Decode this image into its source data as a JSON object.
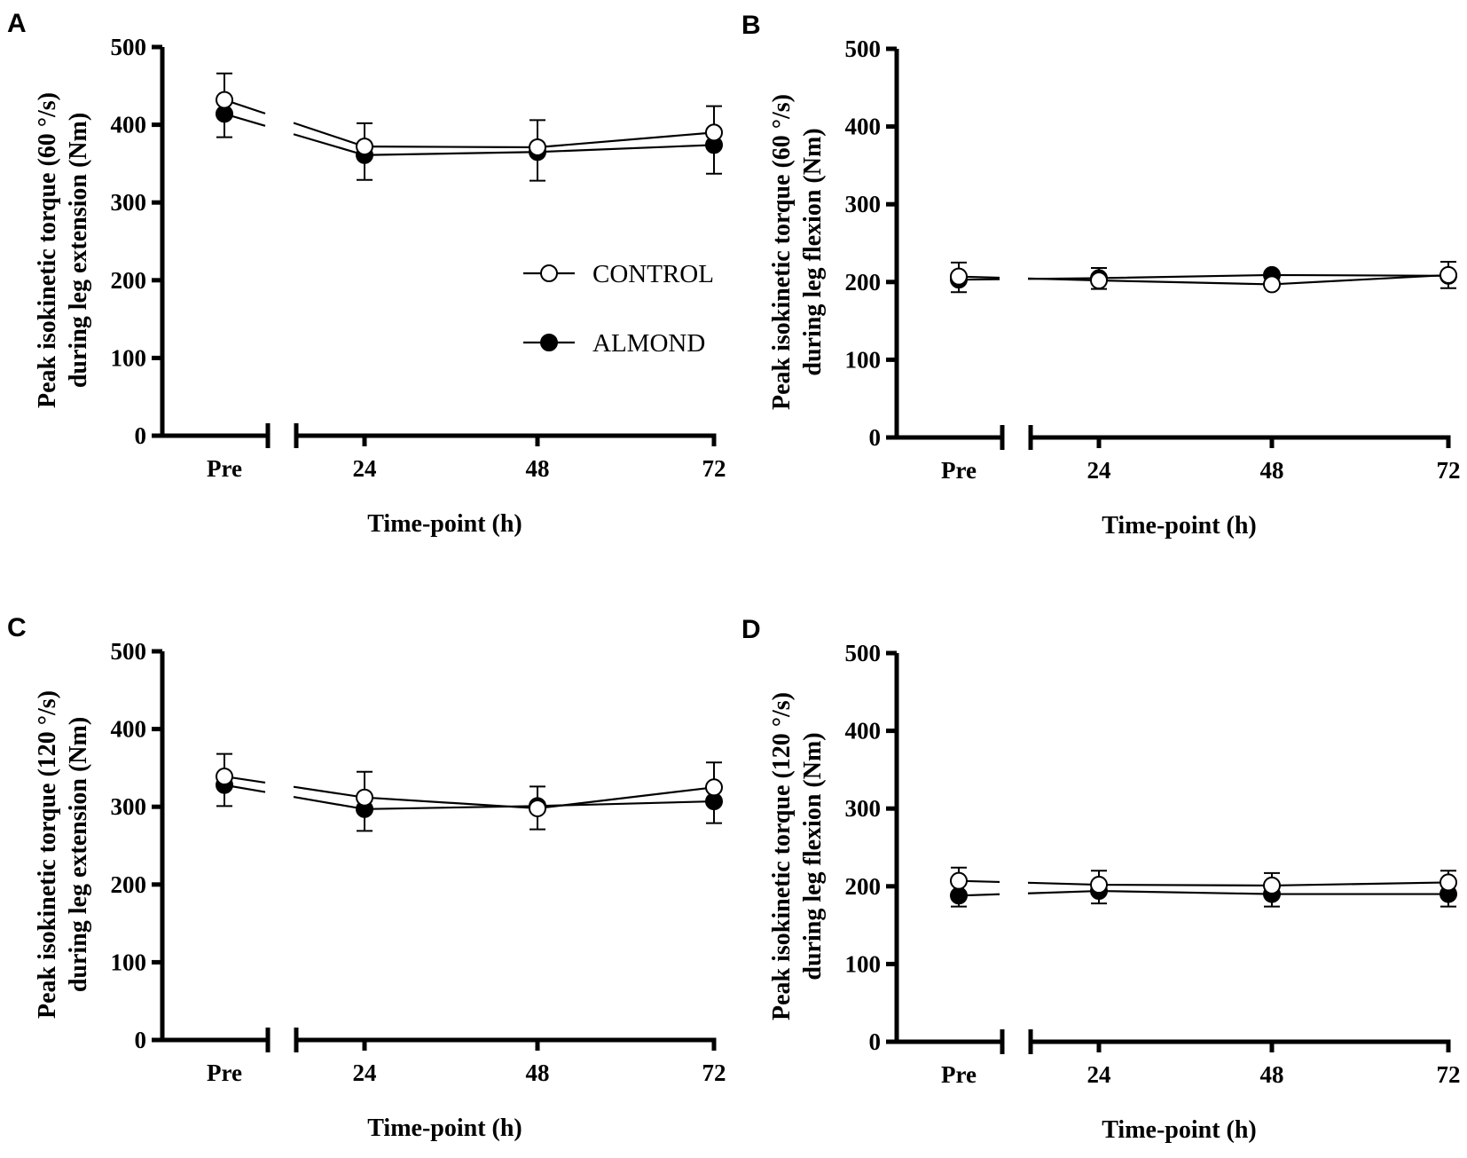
{
  "chart_data": [
    {
      "panel": "A",
      "type": "line",
      "ylabel_line1": "Peak isokinetic torque (60 °/s)",
      "ylabel_line2": "during leg extension (Nm)",
      "xlabel": "Time-point (h)",
      "categories": [
        "Pre",
        "24",
        "48",
        "72"
      ],
      "ylim": [
        0,
        500
      ],
      "yticks": [
        0,
        100,
        200,
        300,
        400,
        500
      ],
      "legend": true,
      "series": [
        {
          "name": "CONTROL",
          "marker": "open",
          "values": [
            432,
            372,
            371,
            390
          ],
          "err": [
            34,
            30,
            35,
            34
          ]
        },
        {
          "name": "ALMOND",
          "marker": "filled",
          "values": [
            414,
            361,
            365,
            374
          ],
          "err": [
            30,
            32,
            37,
            37
          ]
        }
      ]
    },
    {
      "panel": "B",
      "type": "line",
      "ylabel_line1": "Peak isokinetic torque (60 °/s)",
      "ylabel_line2": "during leg flexion (Nm)",
      "xlabel": "Time-point (h)",
      "categories": [
        "Pre",
        "24",
        "48",
        "72"
      ],
      "ylim": [
        0,
        500
      ],
      "yticks": [
        0,
        100,
        200,
        300,
        400,
        500
      ],
      "legend": false,
      "series": [
        {
          "name": "CONTROL",
          "marker": "open",
          "values": [
            207,
            202,
            197,
            209
          ],
          "err": [
            18,
            16,
            8,
            17
          ]
        },
        {
          "name": "ALMOND",
          "marker": "filled",
          "values": [
            203,
            205,
            209,
            208
          ],
          "err": [
            16,
            14,
            8,
            16
          ]
        }
      ]
    },
    {
      "panel": "C",
      "type": "line",
      "ylabel_line1": "Peak isokinetic torque (120 °/s)",
      "ylabel_line2": "during leg extension (Nm)",
      "xlabel": "Time-point (h)",
      "categories": [
        "Pre",
        "24",
        "48",
        "72"
      ],
      "ylim": [
        0,
        500
      ],
      "yticks": [
        0,
        100,
        200,
        300,
        400,
        500
      ],
      "legend": false,
      "series": [
        {
          "name": "CONTROL",
          "marker": "open",
          "values": [
            339,
            312,
            298,
            325
          ],
          "err": [
            29,
            33,
            28,
            32
          ]
        },
        {
          "name": "ALMOND",
          "marker": "filled",
          "values": [
            328,
            297,
            301,
            307
          ],
          "err": [
            27,
            28,
            30,
            28
          ]
        }
      ]
    },
    {
      "panel": "D",
      "type": "line",
      "ylabel_line1": "Peak isokinetic torque (120 °/s)",
      "ylabel_line2": "during leg flexion (Nm)",
      "xlabel": "Time-point (h)",
      "categories": [
        "Pre",
        "24",
        "48",
        "72"
      ],
      "ylim": [
        0,
        500
      ],
      "yticks": [
        0,
        100,
        200,
        300,
        400,
        500
      ],
      "legend": false,
      "series": [
        {
          "name": "CONTROL",
          "marker": "open",
          "values": [
            207,
            202,
            201,
            205
          ],
          "err": [
            17,
            18,
            16,
            15
          ]
        },
        {
          "name": "ALMOND",
          "marker": "filled",
          "values": [
            188,
            194,
            190,
            190
          ],
          "err": [
            14,
            16,
            16,
            16
          ]
        }
      ]
    }
  ]
}
